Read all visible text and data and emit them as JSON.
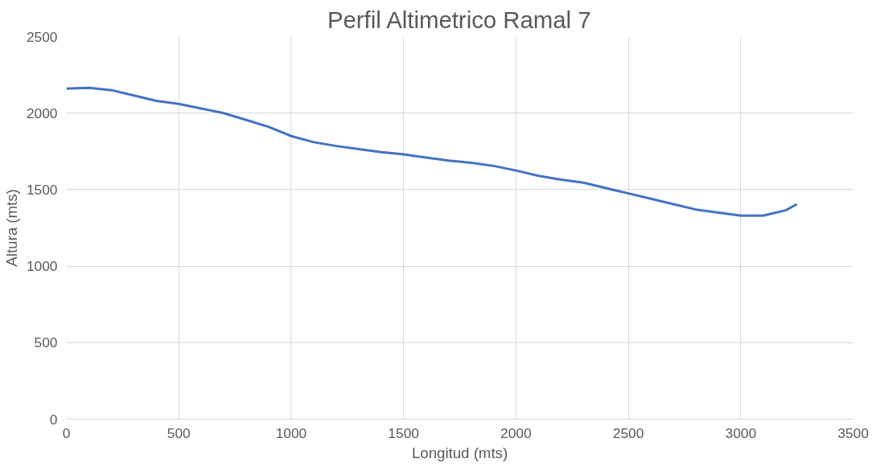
{
  "chart_data": {
    "type": "line",
    "title": "Perfil Altimetrico Ramal 7",
    "xlabel": "Longitud (mts)",
    "ylabel": "Altura (mts)",
    "x": [
      0,
      100,
      200,
      300,
      400,
      500,
      600,
      700,
      800,
      900,
      1000,
      1100,
      1200,
      1300,
      1400,
      1500,
      1600,
      1700,
      1800,
      1900,
      2000,
      2100,
      2200,
      2300,
      2400,
      2500,
      2600,
      2700,
      2800,
      2900,
      3000,
      3100,
      3200,
      3250
    ],
    "series": [
      {
        "color": "#4472c4",
        "values": [
          2160,
          2165,
          2150,
          2115,
          2080,
          2060,
          2030,
          2000,
          1955,
          1910,
          1850,
          1810,
          1785,
          1765,
          1745,
          1730,
          1710,
          1690,
          1675,
          1655,
          1625,
          1590,
          1565,
          1545,
          1510,
          1475,
          1440,
          1405,
          1370,
          1350,
          1330,
          1330,
          1365,
          1405
        ]
      }
    ],
    "xlim": [
      0,
      3500
    ],
    "xticks": [
      0,
      500,
      1000,
      1500,
      2000,
      2500,
      3000,
      3500
    ],
    "ylim": [
      0,
      2500
    ],
    "yticks": [
      0,
      500,
      1000,
      1500,
      2000,
      2500
    ],
    "grid": true,
    "marker": "none",
    "line_style": "solid"
  }
}
